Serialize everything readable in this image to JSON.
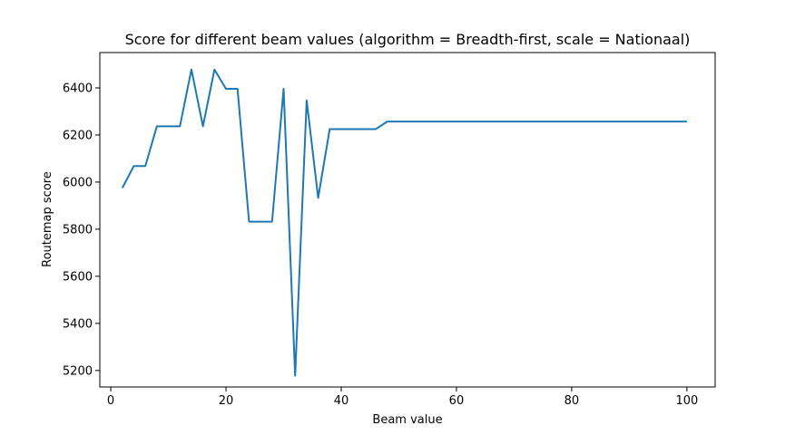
{
  "chart_data": {
    "type": "line",
    "title": "Score for different beam values (algorithm = Breadth-first, scale = Nationaal)",
    "xlabel": "Beam value",
    "ylabel": "Routemap score",
    "xlim": [
      -1.9,
      104.9
    ],
    "ylim": [
      5130,
      6550
    ],
    "xticks": [
      0,
      20,
      40,
      60,
      80,
      100
    ],
    "yticks": [
      5200,
      5400,
      5600,
      5800,
      6000,
      6200,
      6400
    ],
    "grid": false,
    "series": [
      {
        "color": "#1f77b4",
        "x": [
          2,
          4,
          6,
          8,
          10,
          12,
          14,
          16,
          18,
          20,
          22,
          24,
          26,
          28,
          30,
          32,
          34,
          36,
          38,
          40,
          42,
          44,
          46,
          48,
          50,
          52,
          54,
          56,
          58,
          60,
          62,
          64,
          66,
          68,
          70,
          72,
          74,
          76,
          78,
          80,
          82,
          84,
          86,
          88,
          90,
          92,
          94,
          96,
          98,
          100
        ],
        "y": [
          5975,
          6068,
          6068,
          6237,
          6237,
          6237,
          6478,
          6237,
          6478,
          6396,
          6396,
          5832,
          5832,
          5832,
          6396,
          5178,
          6347,
          5933,
          6225,
          6225,
          6225,
          6225,
          6225,
          6257,
          6257,
          6257,
          6257,
          6257,
          6257,
          6257,
          6257,
          6257,
          6257,
          6257,
          6257,
          6257,
          6257,
          6257,
          6257,
          6257,
          6257,
          6257,
          6257,
          6257,
          6257,
          6257,
          6257,
          6257,
          6257,
          6257
        ]
      }
    ]
  }
}
